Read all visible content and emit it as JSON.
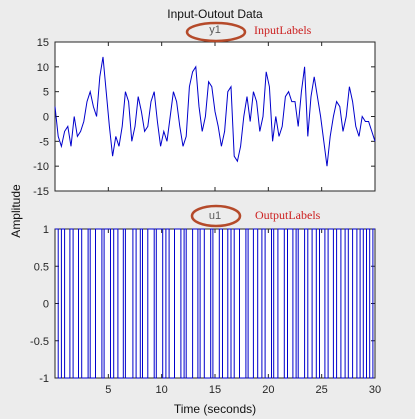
{
  "chart_data": {
    "type": "line",
    "title": "Input-Outout Data",
    "xlabel": "Time (seconds)",
    "ylabel": "Amplitude",
    "xlim": [
      0,
      30
    ],
    "xticks": [
      "5",
      "10",
      "15",
      "20",
      "25",
      "30"
    ],
    "grid": false,
    "panels": [
      {
        "channel": "y1",
        "annotation": "InputLabels",
        "ylim": [
          -15,
          15
        ],
        "yticks": [
          "15",
          "10",
          "5",
          "0",
          "-5",
          "-10",
          "-15"
        ],
        "color": "#0000cc",
        "x": [
          0,
          0.3,
          0.6,
          0.9,
          1.2,
          1.5,
          1.8,
          2.1,
          2.4,
          2.7,
          3.0,
          3.3,
          3.6,
          3.9,
          4.2,
          4.5,
          4.8,
          5.1,
          5.4,
          5.7,
          6.0,
          6.3,
          6.6,
          6.9,
          7.2,
          7.5,
          7.8,
          8.1,
          8.4,
          8.7,
          9.0,
          9.3,
          9.6,
          9.9,
          10.2,
          10.5,
          10.8,
          11.1,
          11.4,
          11.7,
          12.0,
          12.3,
          12.6,
          12.9,
          13.2,
          13.5,
          13.8,
          14.1,
          14.4,
          14.7,
          15.0,
          15.3,
          15.6,
          15.9,
          16.2,
          16.5,
          16.8,
          17.1,
          17.4,
          17.7,
          18.0,
          18.3,
          18.6,
          18.9,
          19.2,
          19.5,
          19.8,
          20.1,
          20.4,
          20.7,
          21.0,
          21.3,
          21.6,
          21.9,
          22.2,
          22.5,
          22.8,
          23.1,
          23.4,
          23.7,
          24.0,
          24.3,
          24.6,
          24.9,
          25.2,
          25.5,
          25.8,
          26.1,
          26.4,
          26.7,
          27.0,
          27.3,
          27.6,
          27.9,
          28.2,
          28.5,
          28.8,
          29.1,
          29.4,
          29.7,
          30.0
        ],
        "values": [
          2,
          -4,
          -6,
          -3,
          -2,
          -6,
          0,
          -4,
          -3,
          -1,
          3,
          5,
          2,
          0,
          8,
          12,
          5,
          -2,
          -8,
          -4,
          -6,
          -2,
          5,
          3,
          -5,
          -2,
          4,
          1,
          -3,
          -2,
          3,
          5,
          -1,
          -6,
          -3,
          -5,
          0,
          5,
          3,
          -2,
          -6,
          -4,
          6,
          9,
          10,
          2,
          -3,
          0,
          7,
          6,
          1,
          -2,
          -6,
          -3,
          5,
          6,
          -8,
          -9,
          -6,
          0,
          4,
          -1,
          5,
          3,
          -3,
          0,
          9,
          6,
          -5,
          0,
          -4,
          -2,
          4,
          5,
          3,
          3,
          -2,
          5,
          10,
          -4,
          4,
          8,
          4,
          0,
          -5,
          -10,
          -4,
          0,
          3,
          2,
          -3,
          0,
          6,
          3,
          -2,
          -4,
          0,
          -1,
          -1,
          -3,
          -5
        ]
      },
      {
        "channel": "u1",
        "annotation": "OutputLabels",
        "ylim": [
          -1,
          1
        ],
        "yticks": [
          "1",
          "0.5",
          "0",
          "-0.5",
          "-1"
        ],
        "color": "#0000cc",
        "switch_times": [
          0.3,
          0.6,
          0.9,
          1.4,
          1.7,
          2.2,
          2.5,
          3.1,
          3.3,
          3.8,
          4.4,
          4.6,
          5.2,
          5.5,
          5.9,
          6.4,
          6.6,
          7.3,
          7.6,
          8.0,
          8.2,
          8.7,
          9.3,
          9.5,
          10.1,
          10.4,
          10.7,
          11.2,
          11.8,
          12.1,
          12.3,
          12.9,
          13.4,
          13.6,
          14.0,
          14.6,
          14.8,
          15.4,
          15.7,
          16.2,
          16.5,
          16.8,
          17.3,
          17.9,
          18.1,
          18.6,
          19.0,
          19.4,
          19.7,
          20.3,
          20.5,
          20.9,
          21.5,
          21.8,
          22.3,
          22.6,
          22.8,
          23.4,
          23.7,
          24.1,
          24.5,
          24.8,
          25.3,
          25.6,
          26.1,
          26.4,
          26.8,
          27.2,
          27.5,
          27.9,
          28.3,
          28.6,
          28.9,
          29.2,
          29.5,
          29.8
        ]
      }
    ]
  }
}
